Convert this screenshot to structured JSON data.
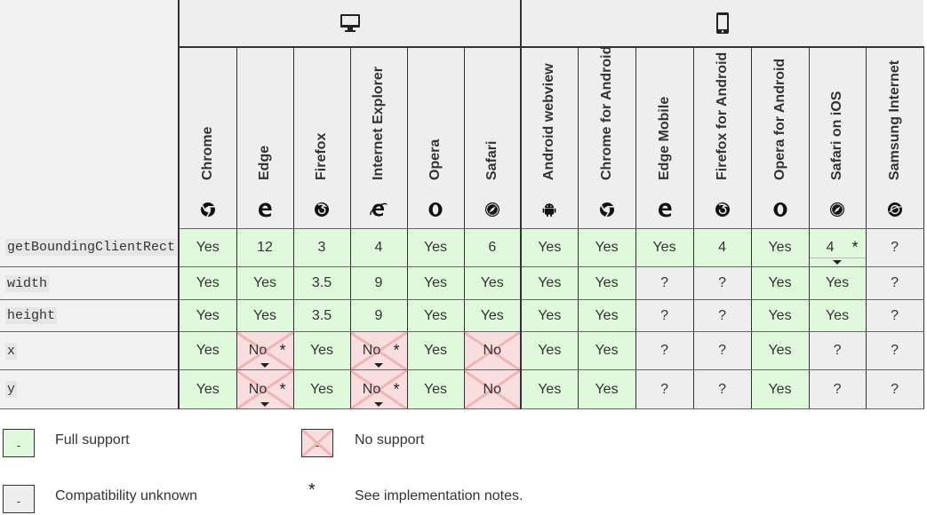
{
  "platforms": [
    {
      "name": "desktop",
      "icon": "desktop-icon"
    },
    {
      "name": "mobile",
      "icon": "mobile-phone-icon"
    }
  ],
  "browsers": [
    {
      "name": "Chrome",
      "icon": "chrome-icon",
      "platform": "desktop"
    },
    {
      "name": "Edge",
      "icon": "edge-icon",
      "platform": "desktop"
    },
    {
      "name": "Firefox",
      "icon": "firefox-icon",
      "platform": "desktop"
    },
    {
      "name": "Internet Explorer",
      "icon": "internet-explorer-icon",
      "platform": "desktop"
    },
    {
      "name": "Opera",
      "icon": "opera-icon",
      "platform": "desktop"
    },
    {
      "name": "Safari",
      "icon": "safari-icon",
      "platform": "desktop"
    },
    {
      "name": "Android webview",
      "icon": "android-icon",
      "platform": "mobile"
    },
    {
      "name": "Chrome for Android",
      "icon": "chrome-icon",
      "platform": "mobile"
    },
    {
      "name": "Edge Mobile",
      "icon": "edge-icon",
      "platform": "mobile"
    },
    {
      "name": "Firefox for Android",
      "icon": "firefox-icon",
      "platform": "mobile"
    },
    {
      "name": "Opera for Android",
      "icon": "opera-icon",
      "platform": "mobile"
    },
    {
      "name": "Safari on iOS",
      "icon": "safari-icon",
      "platform": "mobile"
    },
    {
      "name": "Samsung Internet",
      "icon": "samsung-internet-icon",
      "platform": "mobile"
    }
  ],
  "rows": [
    {
      "feature": "getBoundingClientRect",
      "cells": [
        {
          "v": "Yes",
          "s": "y"
        },
        {
          "v": "12",
          "s": "y"
        },
        {
          "v": "3",
          "s": "y"
        },
        {
          "v": "4",
          "s": "y"
        },
        {
          "v": "Yes",
          "s": "y"
        },
        {
          "v": "6",
          "s": "y"
        },
        {
          "v": "Yes",
          "s": "y"
        },
        {
          "v": "Yes",
          "s": "y"
        },
        {
          "v": "Yes",
          "s": "y"
        },
        {
          "v": "4",
          "s": "y"
        },
        {
          "v": "Yes",
          "s": "y"
        },
        {
          "v": "4",
          "s": "y",
          "note": true
        },
        {
          "v": "?",
          "s": "u"
        }
      ]
    },
    {
      "feature": "width",
      "cells": [
        {
          "v": "Yes",
          "s": "y"
        },
        {
          "v": "Yes",
          "s": "y"
        },
        {
          "v": "3.5",
          "s": "y"
        },
        {
          "v": "9",
          "s": "y"
        },
        {
          "v": "Yes",
          "s": "y"
        },
        {
          "v": "Yes",
          "s": "y"
        },
        {
          "v": "Yes",
          "s": "y"
        },
        {
          "v": "Yes",
          "s": "y"
        },
        {
          "v": "?",
          "s": "u"
        },
        {
          "v": "?",
          "s": "u"
        },
        {
          "v": "Yes",
          "s": "y"
        },
        {
          "v": "Yes",
          "s": "y"
        },
        {
          "v": "?",
          "s": "u"
        }
      ]
    },
    {
      "feature": "height",
      "cells": [
        {
          "v": "Yes",
          "s": "y"
        },
        {
          "v": "Yes",
          "s": "y"
        },
        {
          "v": "3.5",
          "s": "y"
        },
        {
          "v": "9",
          "s": "y"
        },
        {
          "v": "Yes",
          "s": "y"
        },
        {
          "v": "Yes",
          "s": "y"
        },
        {
          "v": "Yes",
          "s": "y"
        },
        {
          "v": "Yes",
          "s": "y"
        },
        {
          "v": "?",
          "s": "u"
        },
        {
          "v": "?",
          "s": "u"
        },
        {
          "v": "Yes",
          "s": "y"
        },
        {
          "v": "Yes",
          "s": "y"
        },
        {
          "v": "?",
          "s": "u"
        }
      ]
    },
    {
      "feature": "x",
      "cells": [
        {
          "v": "Yes",
          "s": "y"
        },
        {
          "v": "No",
          "s": "n",
          "note": true
        },
        {
          "v": "Yes",
          "s": "y"
        },
        {
          "v": "No",
          "s": "n",
          "note": true
        },
        {
          "v": "Yes",
          "s": "y"
        },
        {
          "v": "No",
          "s": "n"
        },
        {
          "v": "Yes",
          "s": "y"
        },
        {
          "v": "Yes",
          "s": "y"
        },
        {
          "v": "?",
          "s": "u"
        },
        {
          "v": "?",
          "s": "u"
        },
        {
          "v": "Yes",
          "s": "y"
        },
        {
          "v": "?",
          "s": "u"
        },
        {
          "v": "?",
          "s": "u"
        }
      ]
    },
    {
      "feature": "y",
      "cells": [
        {
          "v": "Yes",
          "s": "y"
        },
        {
          "v": "No",
          "s": "n",
          "note": true
        },
        {
          "v": "Yes",
          "s": "y"
        },
        {
          "v": "No",
          "s": "n",
          "note": true
        },
        {
          "v": "Yes",
          "s": "y"
        },
        {
          "v": "No",
          "s": "n"
        },
        {
          "v": "Yes",
          "s": "y"
        },
        {
          "v": "Yes",
          "s": "y"
        },
        {
          "v": "?",
          "s": "u"
        },
        {
          "v": "?",
          "s": "u"
        },
        {
          "v": "Yes",
          "s": "y"
        },
        {
          "v": "?",
          "s": "u"
        },
        {
          "v": "?",
          "s": "u"
        }
      ]
    }
  ],
  "legend": {
    "full_support": "Full support",
    "no_support": "No support",
    "unknown": "Compatibility unknown",
    "notes": "See implementation notes.",
    "swatch_mark": "-",
    "notes_mark": "*"
  },
  "colors": {
    "full_support": "#e0f8dc",
    "no_support": "#f8dede",
    "unknown": "#eeeeee"
  }
}
